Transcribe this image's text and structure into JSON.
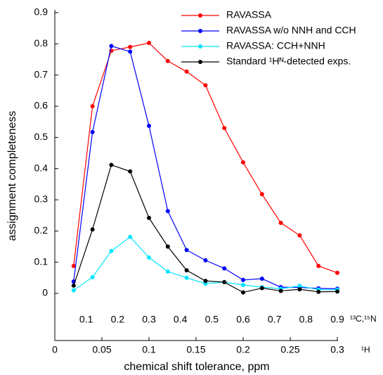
{
  "chart_data": {
    "type": "line",
    "x_label": "chemical shift tolerance, ppm",
    "y_label": "assignment completeness",
    "x_unit": "¹H",
    "x2_unit": "¹³C,¹⁵N",
    "x": [
      0.02,
      0.04,
      0.06,
      0.08,
      0.1,
      0.12,
      0.14,
      0.16,
      0.18,
      0.2,
      0.22,
      0.24,
      0.26,
      0.28,
      0.3
    ],
    "xlim": [
      0,
      0.3
    ],
    "xticks": [
      0,
      0.05,
      0.1,
      0.15,
      0.2,
      0.25,
      0.3
    ],
    "x2lim": [
      0,
      0.9
    ],
    "x2ticks": [
      0.1,
      0.2,
      0.3,
      0.4,
      0.5,
      0.6,
      0.7,
      0.8,
      0.9
    ],
    "ylim": [
      0,
      0.9
    ],
    "yticks": [
      0,
      0.1,
      0.2,
      0.3,
      0.4,
      0.5,
      0.6,
      0.7,
      0.8,
      0.9
    ],
    "series": [
      {
        "name": "RAVASSA",
        "color": "#ff0000",
        "values": [
          0.088,
          0.6,
          0.778,
          0.79,
          0.803,
          0.745,
          0.711,
          0.667,
          0.53,
          0.42,
          0.318,
          0.226,
          0.186,
          0.088,
          0.066
        ]
      },
      {
        "name": "RAVASSA w/o NNH and CCH",
        "color": "#0000ff",
        "values": [
          0.038,
          0.517,
          0.793,
          0.775,
          0.537,
          0.264,
          0.139,
          0.106,
          0.08,
          0.043,
          0.047,
          0.02,
          0.019,
          0.016,
          0.015
        ]
      },
      {
        "name": "RAVASSA: CCH+NNH",
        "color": "#00e5ff",
        "values": [
          0.01,
          0.052,
          0.136,
          0.181,
          0.115,
          0.07,
          0.05,
          0.031,
          0.036,
          0.027,
          0.02,
          0.015,
          0.024,
          0.012,
          0.012
        ]
      },
      {
        "name": "Standard ¹Hᴺ-detected exps.",
        "color": "#000000",
        "values": [
          0.025,
          0.205,
          0.412,
          0.391,
          0.242,
          0.15,
          0.074,
          0.04,
          0.036,
          0.003,
          0.017,
          0.008,
          0.013,
          0.005,
          0.006
        ]
      }
    ]
  }
}
